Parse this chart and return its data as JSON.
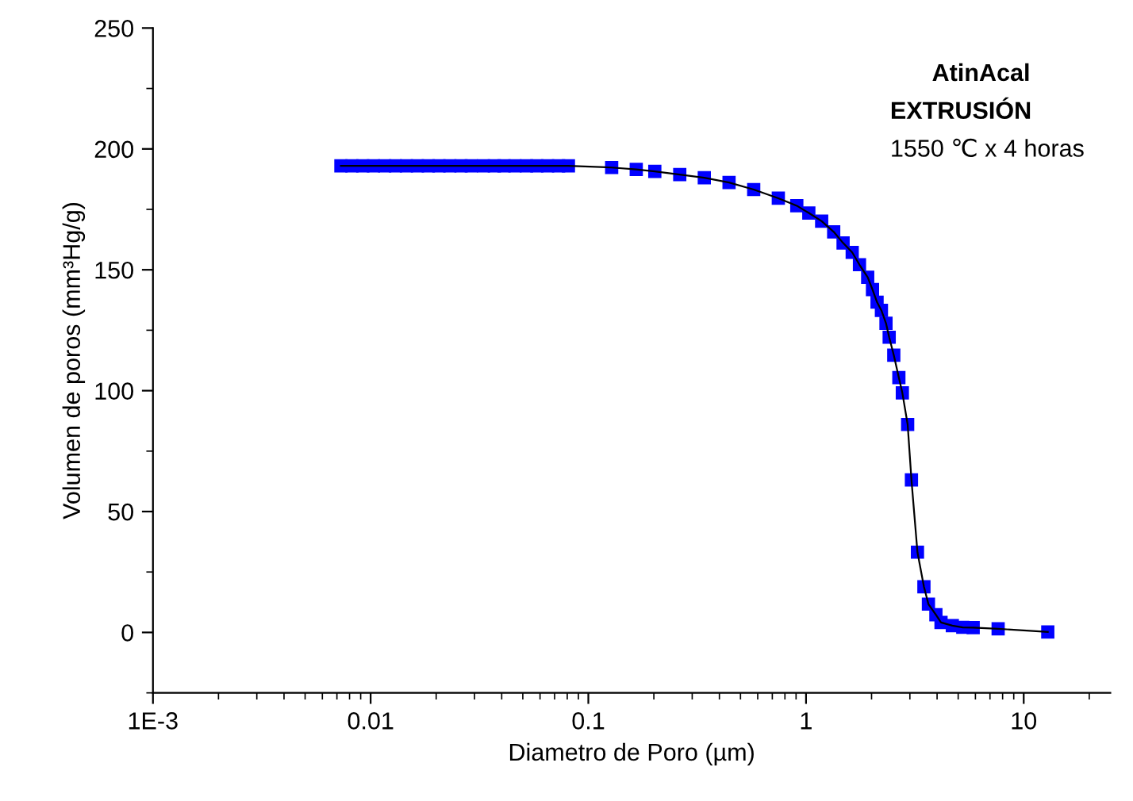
{
  "chart_data": {
    "type": "line",
    "xlabel": "Diametro de Poro (µm)",
    "ylabel": "Volumen de poros (mm³Hg/g)",
    "log": "x",
    "marker": "square",
    "line_style": "solid",
    "grid": false,
    "legend": false,
    "xlim": [
      0.001,
      25
    ],
    "xticks": [
      {
        "value": 0.001,
        "label": "1E-3"
      },
      {
        "value": 0.01,
        "label": "0.01"
      },
      {
        "value": 0.1,
        "label": "0.1"
      },
      {
        "value": 1,
        "label": "1"
      },
      {
        "value": 10,
        "label": "10"
      }
    ],
    "ylim": [
      -25,
      250
    ],
    "yticks": [
      0,
      50,
      100,
      150,
      200,
      250
    ],
    "annotations": [
      "AtinAcal",
      "EXTRUSIÓN",
      "1550 ℃ x 4 horas"
    ],
    "series": [
      {
        "color": "#0000ff",
        "x": [
          0.0073,
          0.0082,
          0.0092,
          0.0103,
          0.0116,
          0.013,
          0.0146,
          0.0164,
          0.0184,
          0.0206,
          0.0231,
          0.026,
          0.029,
          0.033,
          0.037,
          0.041,
          0.046,
          0.052,
          0.058,
          0.065,
          0.073,
          0.081,
          0.128,
          0.166,
          0.202,
          0.263,
          0.341,
          0.443,
          0.575,
          0.746,
          0.907,
          1.03,
          1.18,
          1.34,
          1.48,
          1.63,
          1.76,
          1.92,
          2.02,
          2.12,
          2.22,
          2.33,
          2.41,
          2.53,
          2.67,
          2.77,
          2.93,
          3.05,
          3.25,
          3.48,
          3.65,
          3.95,
          4.17,
          4.7,
          5.25,
          5.86,
          7.63,
          12.9
        ],
        "values": [
          193,
          193,
          193,
          193,
          193,
          193,
          193,
          193,
          193,
          193,
          193,
          193,
          193,
          193,
          193,
          193,
          193,
          193,
          193,
          193,
          193,
          193,
          192.3,
          191.5,
          190.7,
          189.4,
          188.1,
          186.1,
          183.2,
          179.6,
          176.5,
          173.5,
          170.1,
          165.7,
          161.1,
          157.2,
          152.1,
          146.9,
          141.8,
          136.6,
          133.2,
          127.9,
          122.1,
          114.7,
          105.4,
          99.1,
          86.0,
          63.1,
          33.2,
          18.9,
          11.7,
          7.3,
          4.1,
          2.8,
          2.1,
          2.0,
          1.5,
          0.2
        ]
      }
    ]
  }
}
